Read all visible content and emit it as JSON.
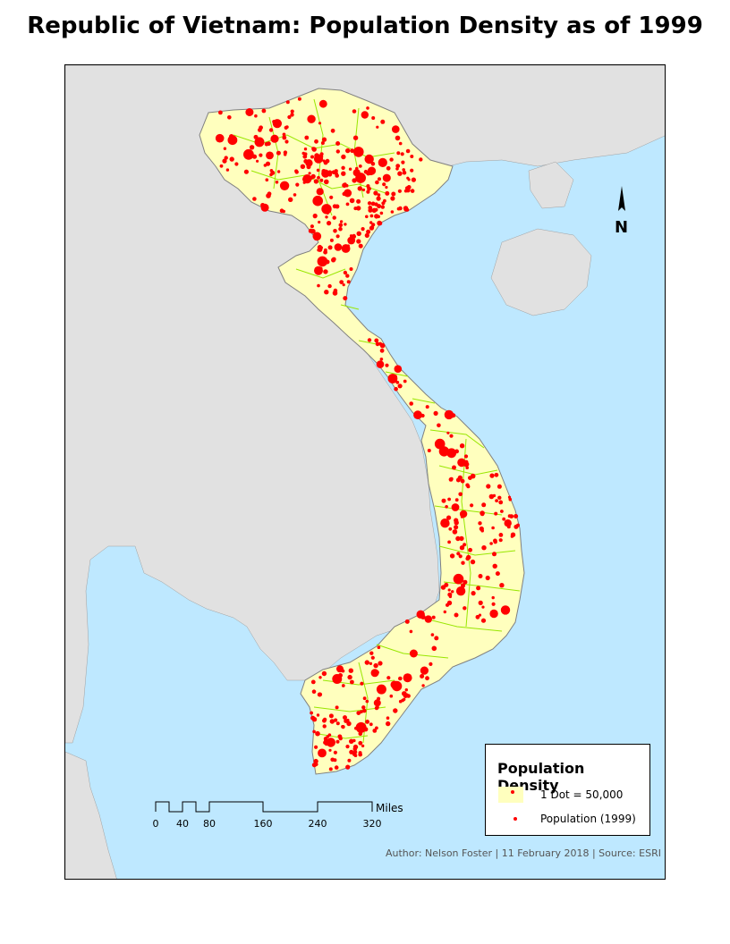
{
  "title": "Republic of Vietnam: Population Density as of 1999",
  "map": {
    "colors": {
      "sea": "#bee8ff",
      "land_other": "#e1e1e1",
      "vietnam": "#ffffbe",
      "province_border": "#98e600",
      "dots": "#ff0000"
    }
  },
  "legend": {
    "title": "Population Density",
    "items": [
      {
        "label": "1 Dot = 50,000",
        "symbol": "yellow-swatch-with-dot"
      },
      {
        "label": "Population (1999)",
        "symbol": "red-dot"
      }
    ]
  },
  "scalebar": {
    "ticks": [
      "0",
      "40",
      "80",
      "160",
      "240",
      "320"
    ],
    "unit": "Miles"
  },
  "north_arrow": {
    "label": "N"
  },
  "credit": "Author: Nelson Foster | 11 February 2018 | Source: ESRI"
}
